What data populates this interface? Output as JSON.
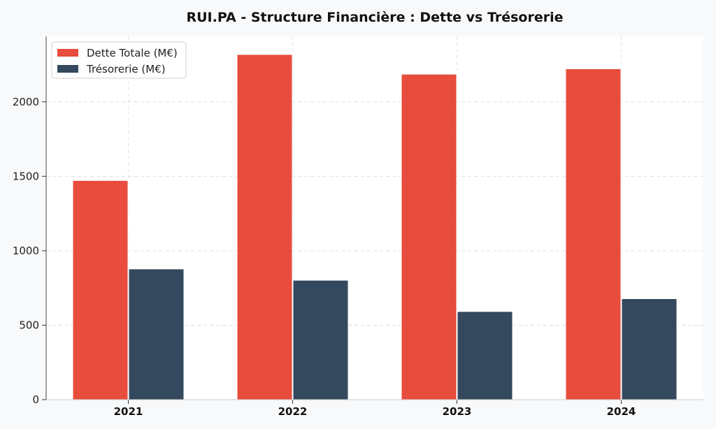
{
  "chart_data": {
    "type": "bar",
    "title": "RUI.PA - Structure Financière : Dette vs Trésorerie",
    "categories": [
      "2021",
      "2022",
      "2023",
      "2024"
    ],
    "series": [
      {
        "name": "Dette Totale (M€)",
        "values": [
          1472,
          2318,
          2186,
          2222
        ],
        "color": "#e74c3c"
      },
      {
        "name": "Trésorerie (M€)",
        "values": [
          878,
          802,
          592,
          678
        ],
        "color": "#34495e"
      }
    ],
    "yticks": [
      0,
      500,
      1000,
      1500,
      2000
    ],
    "ylim": [
      0,
      2440
    ],
    "grid": true,
    "legend": "top-left",
    "xlabel": "",
    "ylabel": ""
  }
}
